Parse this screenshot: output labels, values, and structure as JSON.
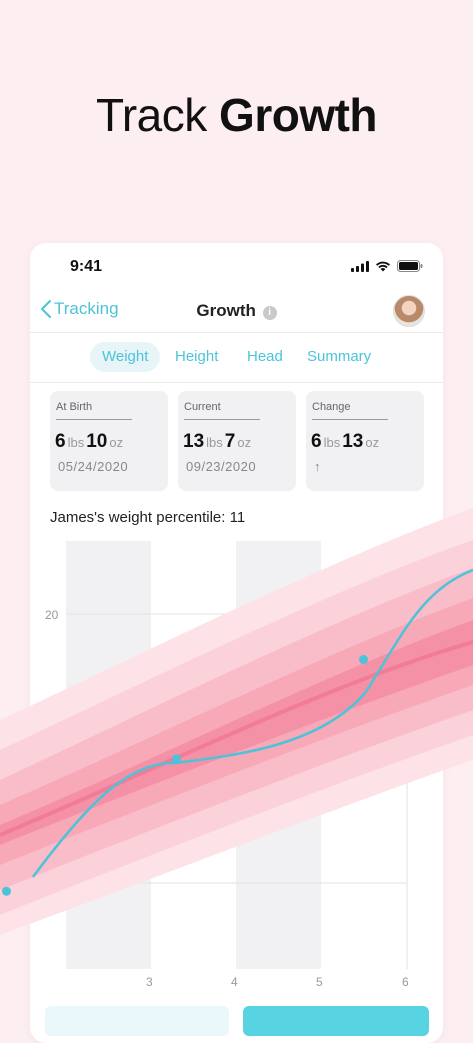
{
  "headline": {
    "light": "Track",
    "bold": "Growth"
  },
  "status_bar": {
    "time": "9:41"
  },
  "nav": {
    "back_label": "Tracking",
    "title": "Growth",
    "info_icon": "i"
  },
  "tabs": [
    {
      "label": "Weight",
      "active": true
    },
    {
      "label": "Height",
      "active": false
    },
    {
      "label": "Head",
      "active": false
    },
    {
      "label": "Summary",
      "active": false
    }
  ],
  "cards": [
    {
      "label": "At Birth",
      "lbs": "6",
      "oz": "10",
      "lbs_unit": "lbs",
      "oz_unit": "oz",
      "date": "05/24/2020"
    },
    {
      "label": "Current",
      "lbs": "13",
      "oz": "7",
      "lbs_unit": "lbs",
      "oz_unit": "oz",
      "date": "09/23/2020"
    },
    {
      "label": "Change",
      "lbs": "6",
      "oz": "13",
      "lbs_unit": "lbs",
      "oz_unit": "oz",
      "date": "↑"
    }
  ],
  "percentile_text": "James's weight percentile: 11",
  "colors": {
    "accent": "#4cc3d9",
    "background": "#fdeef1",
    "band": "#f7a9b8"
  },
  "chart_data": {
    "type": "line",
    "x_ticks": [
      "3",
      "4",
      "5",
      "6"
    ],
    "y_ticks": [
      "20"
    ],
    "series": [
      {
        "values": [
          {
            "x": 1.3,
            "y": 6.6
          },
          {
            "x": 3.3,
            "y": 13.0
          },
          {
            "x": 5.5,
            "y": 17.8
          }
        ]
      }
    ]
  },
  "buttons": {
    "left_icon": "chevron-down-icon",
    "right_icon": "add-icon"
  }
}
